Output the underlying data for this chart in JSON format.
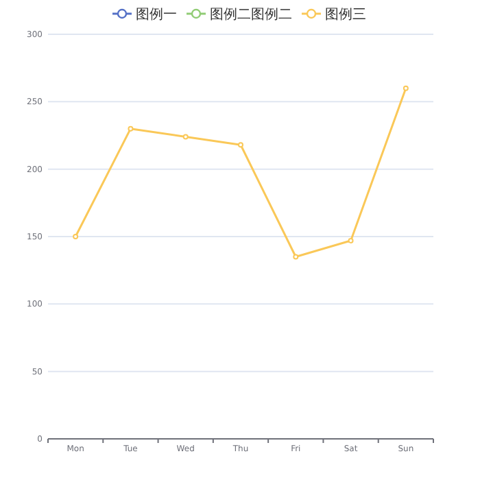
{
  "chart_data": {
    "type": "line",
    "categories": [
      "Mon",
      "Tue",
      "Wed",
      "Thu",
      "Fri",
      "Sat",
      "Sun"
    ],
    "series": [
      {
        "name": "图例一",
        "color": "#5470c6",
        "values": [
          null,
          null,
          null,
          null,
          null,
          null,
          null
        ]
      },
      {
        "name": "图例二图例二",
        "color": "#91cc75",
        "values": [
          null,
          null,
          null,
          null,
          null,
          null,
          null
        ]
      },
      {
        "name": "图例三",
        "color": "#fac858",
        "values": [
          150,
          230,
          224,
          218,
          135,
          147,
          260
        ]
      }
    ],
    "ylim": [
      0,
      300
    ],
    "yticks": [
      0,
      50,
      100,
      150,
      200,
      250,
      300
    ],
    "grid": "y",
    "legend": "top",
    "marker": "circle",
    "line_style": "solid"
  }
}
